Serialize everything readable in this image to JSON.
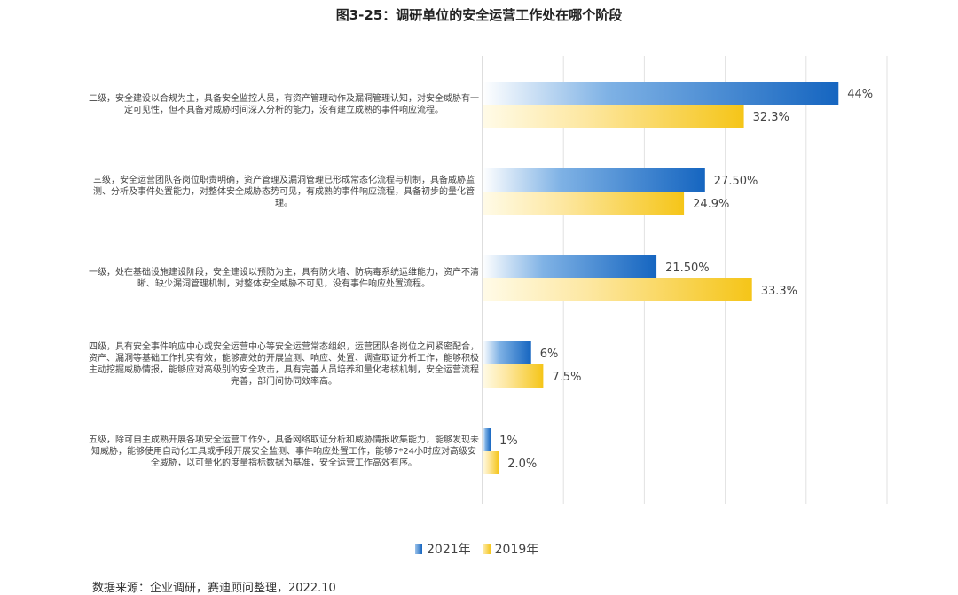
{
  "chart_data": {
    "type": "bar",
    "orientation": "horizontal",
    "title": "图3-25：调研单位的安全运营工作处在哪个阶段",
    "categories": [
      "二级，安全建设以合规为主，具备安全监控人员，有资产管理动作及漏洞管理认知，对安全威胁有一定可见性，但不具备对威胁时间深入分析的能力，没有建立成熟的事件响应流程。",
      "三级，安全运营团队各岗位职责明确，资产管理及漏洞管理已形成常态化流程与机制，具备威胁监测、分析及事件处置能力，对整体安全威胁态势可见，有成熟的事件响应流程，具备初步的量化管理。",
      "一级，处在基础设施建设阶段，安全建设以预防为主，具有防火墙、防病毒系统运维能力，资产不清晰、缺少漏洞管理机制，对整体安全威胁不可见，没有事件响应处置流程。",
      "四级，具有安全事件响应中心或安全运营中心等安全运营常态组织，运营团队各岗位之间紧密配合，资产、漏洞等基础工作扎实有效，能够高效的开展监测、响应、处置、调查取证分析工作，能够积极主动挖掘威胁情报，能够应对高级别的安全攻击，具有完善人员培养和量化考核机制，安全运营流程完善，部门间协同效率高。",
      "五级，除可自主成熟开展各项安全运营工作外，具备网络取证分析和威胁情报收集能力，能够发现未知威胁，能够使用自动化工具或手段开展安全监测、事件响应处置工作，能够7*24小时应对高级安全威胁，以可量化的度量指标数据为基准，安全运营工作高效有序。"
    ],
    "series": [
      {
        "name": "2021年",
        "values": [
          44,
          27.5,
          21.5,
          6,
          1
        ],
        "labels": [
          "44%",
          "27.50%",
          "21.50%",
          "6%",
          "1%"
        ],
        "color": "#1565c0"
      },
      {
        "name": "2019年",
        "values": [
          32.3,
          24.9,
          33.3,
          7.5,
          2.0
        ],
        "labels": [
          "32.3%",
          "24.9%",
          "33.3%",
          "7.5%",
          "2.0%"
        ],
        "color": "#f5c518"
      }
    ],
    "xlim": [
      0,
      50
    ],
    "grid": true,
    "legend_position": "bottom"
  },
  "source": "数据来源：企业调研，赛迪顾问整理，2022.10"
}
